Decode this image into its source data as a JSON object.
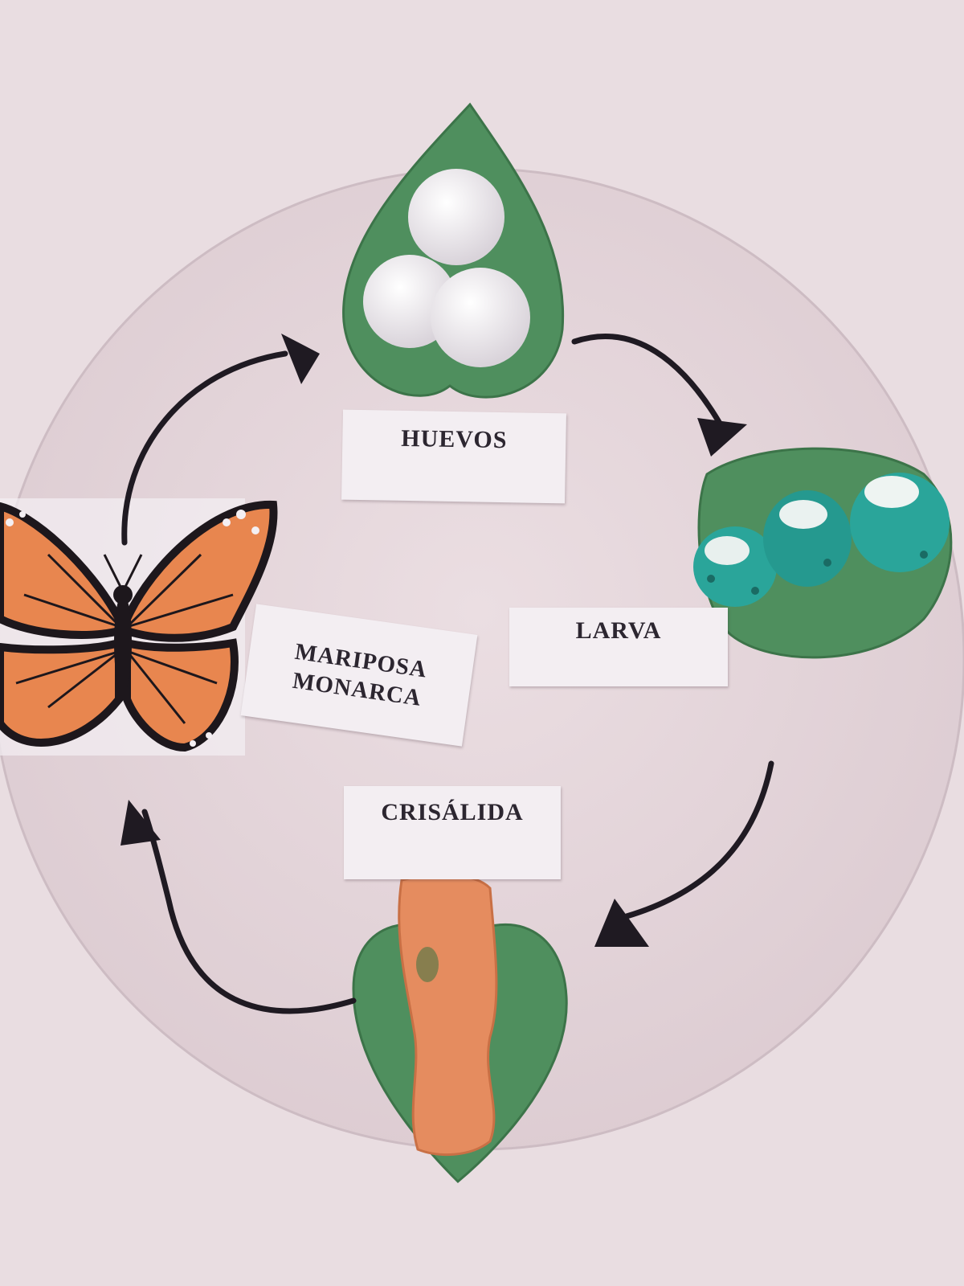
{
  "stages": {
    "eggs": "HUEVOS",
    "larva": "LARVA",
    "butterfly_line1": "MARIPOSA",
    "butterfly_line2": "MONARCA",
    "chrysalis": "CRISÁLIDA"
  },
  "colors": {
    "wall": "#e9dde1",
    "disk": "#e6d9dd",
    "leaf": "#4f8f5e",
    "arrow": "#1f1a22",
    "butterfly_wing": "#e8864f",
    "chrysalis": "#e58c5f",
    "larva": "#2aa59a"
  }
}
